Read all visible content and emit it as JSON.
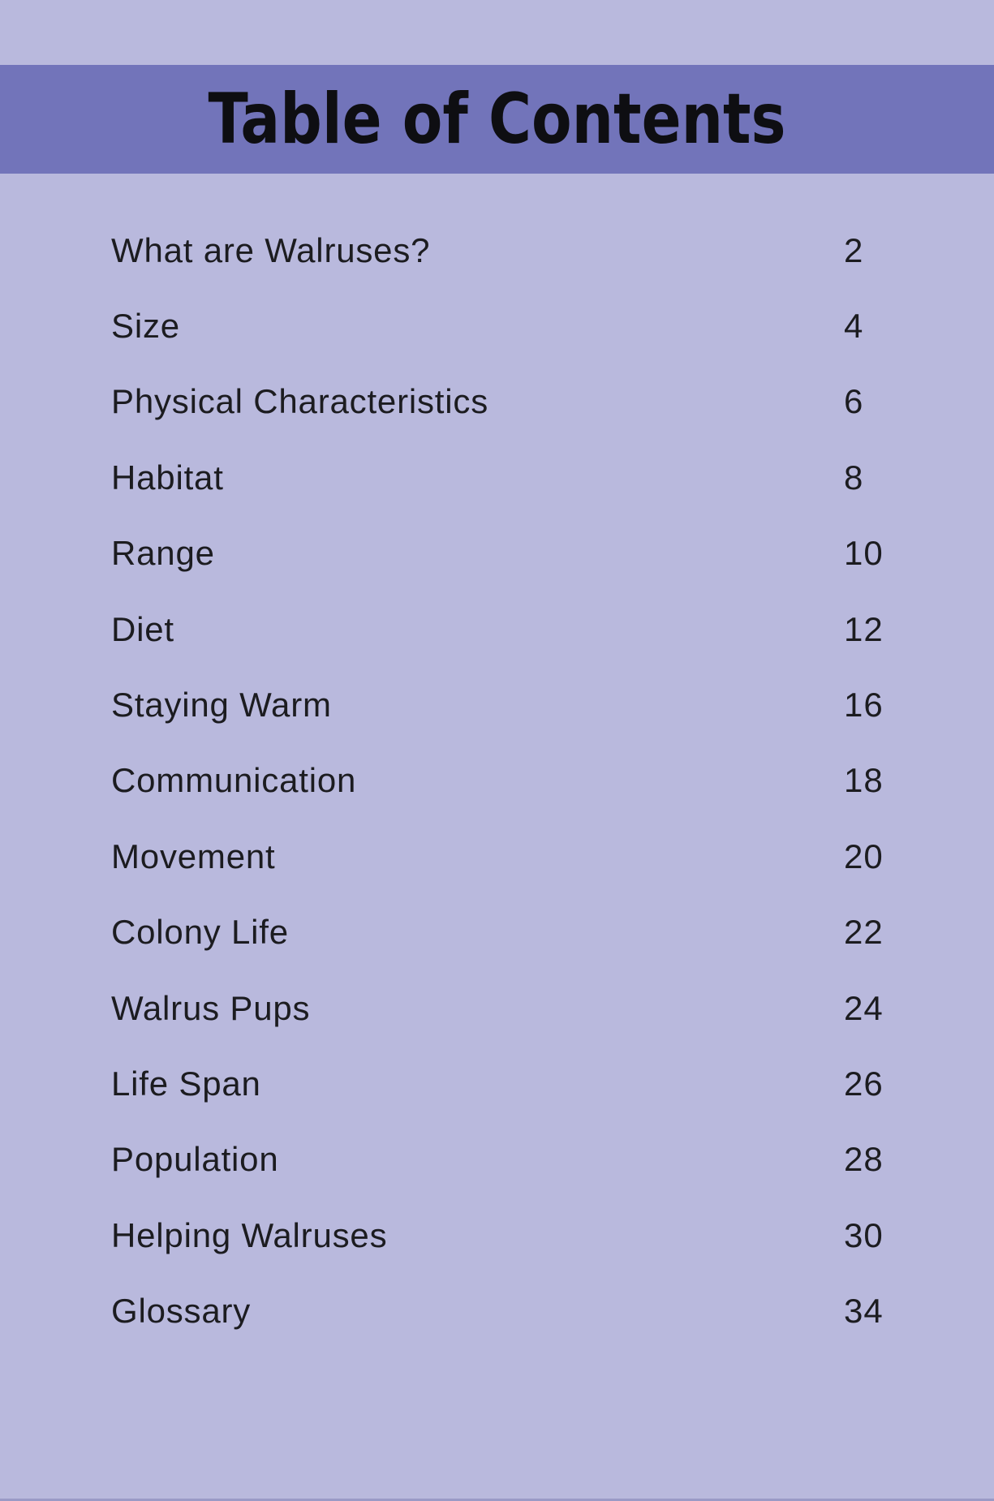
{
  "colors": {
    "page_background": "#b9b9dd",
    "banner_background": "#7274ba",
    "text": "#1c1c20",
    "title_text": "#0e0e12"
  },
  "banner": {
    "title": "Table of Contents"
  },
  "toc": {
    "entries": [
      {
        "title": "What are Walruses?",
        "page": "2"
      },
      {
        "title": "Size",
        "page": "4"
      },
      {
        "title": "Physical Characteristics",
        "page": "6"
      },
      {
        "title": "Habitat",
        "page": "8"
      },
      {
        "title": "Range",
        "page": "10"
      },
      {
        "title": "Diet",
        "page": "12"
      },
      {
        "title": "Staying Warm",
        "page": "16"
      },
      {
        "title": "Communication",
        "page": "18"
      },
      {
        "title": "Movement",
        "page": "20"
      },
      {
        "title": "Colony Life",
        "page": "22"
      },
      {
        "title": "Walrus Pups",
        "page": "24"
      },
      {
        "title": "Life Span",
        "page": "26"
      },
      {
        "title": "Population",
        "page": "28"
      },
      {
        "title": "Helping Walruses",
        "page": "30"
      },
      {
        "title": "Glossary",
        "page": "34"
      }
    ]
  }
}
